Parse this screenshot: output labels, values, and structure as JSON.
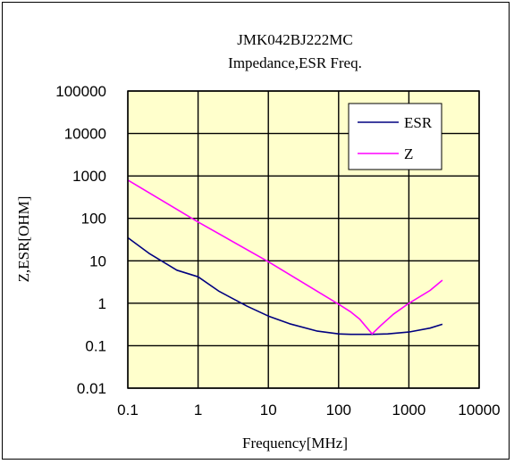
{
  "chart_data": {
    "type": "line",
    "title": "JMK042BJ222MC",
    "subtitle": "Impedance,ESR Freq.",
    "xlabel": "Frequency[MHz]",
    "ylabel": "Z,ESR[OHM]",
    "x_scale": "log",
    "y_scale": "log",
    "xlim": [
      0.1,
      10000
    ],
    "ylim": [
      0.01,
      100000
    ],
    "x_ticks": [
      0.1,
      1,
      10,
      100,
      1000,
      10000
    ],
    "x_tick_labels": [
      "0.1",
      "1",
      "10",
      "100",
      "1000",
      "10000"
    ],
    "y_ticks": [
      0.01,
      0.1,
      1,
      10,
      100,
      1000,
      10000,
      100000
    ],
    "y_tick_labels": [
      "0.01",
      "0.1",
      "1",
      "10",
      "100",
      "1000",
      "10000",
      "100000"
    ],
    "grid": true,
    "legend_position": "top-right",
    "plot_background": "#ffffcc",
    "series": [
      {
        "name": "ESR",
        "color": "#000080",
        "x": [
          0.1,
          0.2,
          0.5,
          1,
          2,
          5,
          10,
          20,
          50,
          100,
          150,
          200,
          300,
          500,
          1000,
          2000,
          3000
        ],
        "y": [
          35,
          15,
          6,
          4.2,
          1.9,
          0.85,
          0.5,
          0.33,
          0.22,
          0.19,
          0.185,
          0.185,
          0.185,
          0.19,
          0.21,
          0.26,
          0.32
        ]
      },
      {
        "name": "Z",
        "color": "#ff00ff",
        "x": [
          0.1,
          1,
          10,
          100,
          150,
          200,
          250,
          300,
          400,
          600,
          1000,
          2000,
          3000
        ],
        "y": [
          800,
          82,
          9.5,
          0.95,
          0.62,
          0.42,
          0.27,
          0.19,
          0.3,
          0.55,
          1.0,
          2.0,
          3.5
        ]
      }
    ]
  }
}
